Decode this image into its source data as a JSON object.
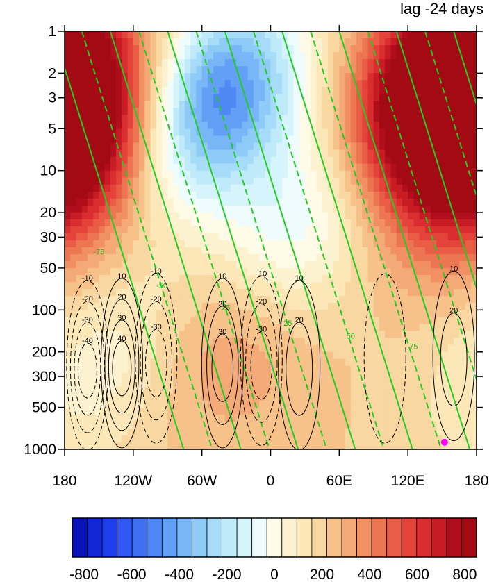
{
  "chart_data": {
    "type": "heatmap",
    "title": "lag -24 days",
    "x_ticks": [
      "180",
      "120W",
      "60W",
      "0",
      "60E",
      "120E",
      "180"
    ],
    "x_values": [
      -180,
      -120,
      -60,
      0,
      60,
      120,
      180
    ],
    "y_scale": "log",
    "y_reversed": true,
    "ylim": [
      1000,
      1
    ],
    "y_ticks": [
      "1",
      "2",
      "3",
      "5",
      "10",
      "20",
      "30",
      "50",
      "100",
      "200",
      "300",
      "500",
      "1000"
    ],
    "y_values": [
      1,
      2,
      3,
      5,
      10,
      20,
      30,
      50,
      100,
      200,
      300,
      500,
      1000
    ],
    "colorbar": {
      "min": -850,
      "max": 850,
      "step": 50,
      "tick_labels": [
        "-800",
        "-600",
        "-400",
        "-200",
        "0",
        "200",
        "400",
        "600",
        "800"
      ],
      "tick_values": [
        -800,
        -600,
        -400,
        -200,
        0,
        200,
        400,
        600,
        800
      ],
      "colors": [
        "#0a13b8",
        "#1228d6",
        "#1e40ec",
        "#2f58f2",
        "#3f70f4",
        "#4f88f5",
        "#62a0f6",
        "#78b6f7",
        "#8ecbf7",
        "#a6dcf8",
        "#bfeafa",
        "#d6f4fb",
        "#eefcfd",
        "#fffbe6",
        "#fdf2cf",
        "#fbe7b7",
        "#f8d7a0",
        "#f6c28a",
        "#f3aa76",
        "#f09063",
        "#ec7652",
        "#e95c45",
        "#e4433a",
        "#d92d2f",
        "#c81c24",
        "#b00e1c",
        "#a30a14"
      ]
    },
    "shaded_centers": [
      {
        "lon": -170,
        "p": 7,
        "value": 520
      },
      {
        "lon": -45,
        "p": 3,
        "value": -580
      },
      {
        "lon": 150,
        "p": 2.5,
        "value": 760
      },
      {
        "lon": 20,
        "p": 30,
        "value": -280
      },
      {
        "lon": -150,
        "p": 250,
        "value": -130
      },
      {
        "lon": -20,
        "p": 120,
        "value": 160
      }
    ],
    "black_contour_cells": [
      {
        "lon": -160,
        "p": 280,
        "sign": -1,
        "peak": 40,
        "levels_shown": [
          "-10",
          "-20",
          "-30",
          "-40"
        ]
      },
      {
        "lon": -130,
        "p": 270,
        "sign": 1,
        "peak": 40,
        "levels_shown": [
          "10",
          "20",
          "30",
          "40"
        ]
      },
      {
        "lon": -100,
        "p": 250,
        "sign": -1,
        "peak": 30,
        "levels_shown": [
          "-10",
          "-20",
          "-30"
        ]
      },
      {
        "lon": -42,
        "p": 270,
        "sign": 1,
        "peak": 30,
        "levels_shown": [
          "10",
          "20",
          "30"
        ]
      },
      {
        "lon": -8,
        "p": 260,
        "sign": -1,
        "peak": 30,
        "levels_shown": [
          "-10",
          "-20",
          "-30"
        ]
      },
      {
        "lon": 25,
        "p": 280,
        "sign": 1,
        "peak": 20,
        "levels_shown": [
          "10",
          "20"
        ]
      },
      {
        "lon": 100,
        "p": 250,
        "sign": -1,
        "peak": 10,
        "levels_shown": []
      },
      {
        "lon": 160,
        "p": 240,
        "sign": 1,
        "peak": 20,
        "levels_shown": [
          "10",
          "20"
        ]
      }
    ],
    "green_contour_levels_shown": [
      "-75",
      "-50",
      "-25",
      "25",
      "50",
      "75"
    ],
    "marker": {
      "lon": 152,
      "p": 890,
      "color": "#ff00ff"
    }
  }
}
